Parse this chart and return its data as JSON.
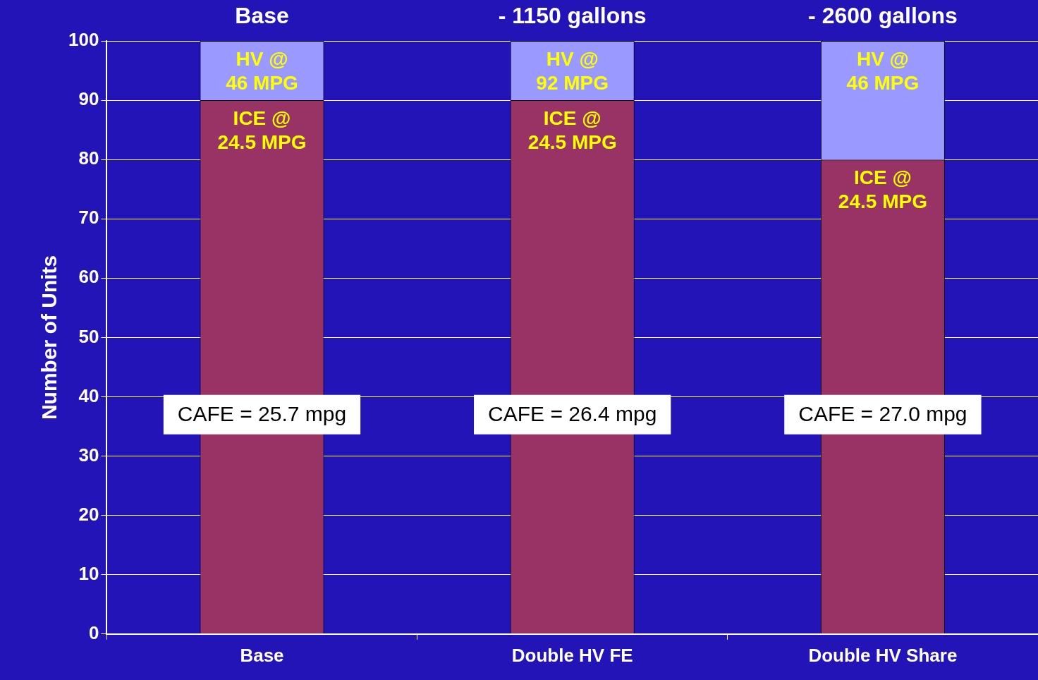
{
  "chart_data": {
    "type": "bar",
    "stacked": true,
    "ylabel": "Number of Units",
    "categories": [
      "Base",
      "Double HV FE",
      "Double HV Share"
    ],
    "series": [
      {
        "color": "#993366",
        "values": [
          90,
          90,
          80
        ]
      },
      {
        "color": "#9999ff",
        "values": [
          10,
          10,
          20
        ]
      }
    ],
    "ylim": [
      0,
      100
    ],
    "yticks": [
      0,
      10,
      20,
      30,
      40,
      50,
      60,
      70,
      80,
      90,
      100
    ],
    "grid": "y",
    "legend": false,
    "annotations": [
      "Base",
      "- 1150 gallons",
      "- 2600 gallons",
      "HV @\n46 MPG",
      "HV @\n92 MPG",
      "HV @\n46 MPG",
      "ICE @\n24.5 MPG",
      "ICE @\n24.5 MPG",
      "ICE @\n24.5 MPG",
      "CAFE = 25.7 mpg",
      "CAFE = 26.4 mpg",
      "CAFE = 27.0 mpg"
    ]
  }
}
